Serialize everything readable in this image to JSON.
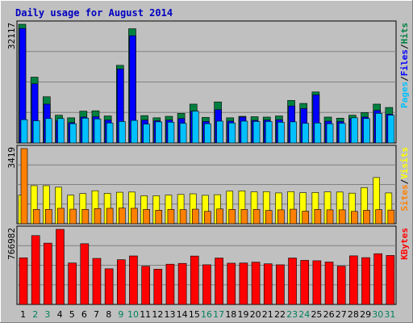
{
  "colors": {
    "background": "#c0c0c0",
    "title": "#0000c0",
    "hits": "#008040",
    "files": "#0000ff",
    "pages": "#00c0ff",
    "visits": "#ffff00",
    "sites": "#ff8000",
    "kbytes": "#ff0000",
    "weekend_day": "#00805c"
  },
  "chart_data": {
    "type": "bar",
    "title": "Daily usage for August 2014",
    "categories": [
      "1",
      "2",
      "3",
      "4",
      "5",
      "6",
      "7",
      "8",
      "9",
      "10",
      "11",
      "12",
      "13",
      "14",
      "15",
      "16",
      "17",
      "18",
      "19",
      "20",
      "21",
      "22",
      "23",
      "24",
      "25",
      "26",
      "27",
      "28",
      "29",
      "30",
      "31"
    ],
    "weekend_days": [
      "2",
      "3",
      "9",
      "10",
      "16",
      "17",
      "23",
      "24",
      "30",
      "31"
    ],
    "panels": [
      {
        "id": "hits-files-pages",
        "ymax_label": "32117",
        "ymax": 32117,
        "legend": [
          "Pages",
          "/",
          "Files",
          "/",
          "Hits"
        ],
        "series": [
          {
            "name": "Hits",
            "values": [
              32117,
              17800,
              12500,
              7500,
              6800,
              8600,
              8700,
              7300,
              21000,
              30900,
              7400,
              6800,
              7200,
              8000,
              10500,
              6900,
              11100,
              6800,
              7200,
              7100,
              7000,
              7300,
              11500,
              10700,
              13800,
              7000,
              6700,
              7500,
              8200,
              10500,
              9600
            ]
          },
          {
            "name": "Files",
            "values": [
              31000,
              16000,
              10500,
              6000,
              5500,
              7000,
              7100,
              6200,
              20000,
              29000,
              6200,
              6000,
              6200,
              6600,
              8600,
              5800,
              9000,
              5900,
              7000,
              6100,
              6200,
              6300,
              10000,
              9300,
              13000,
              5900,
              5800,
              6600,
              7000,
              8800,
              7800
            ]
          },
          {
            "name": "Pages",
            "values": [
              6300,
              6000,
              6600,
              6600,
              5200,
              6700,
              6500,
              5400,
              5800,
              6100,
              5100,
              5700,
              5600,
              5300,
              8600,
              5200,
              5900,
              5400,
              5900,
              5800,
              5800,
              5600,
              5700,
              5300,
              5400,
              5200,
              5300,
              6800,
              6600,
              8000,
              7500
            ]
          }
        ]
      },
      {
        "id": "visits-sites",
        "ymax_label": "3419",
        "ymax": 3419,
        "legend": [
          "Sites",
          "/",
          "Visits"
        ],
        "series": [
          {
            "name": "Visits",
            "values": [
              1300,
              1730,
              1730,
              1660,
              1300,
              1370,
              1500,
              1380,
              1430,
              1440,
              1270,
              1270,
              1300,
              1330,
              1360,
              1290,
              1320,
              1480,
              1490,
              1450,
              1460,
              1400,
              1460,
              1410,
              1420,
              1450,
              1440,
              1390,
              1640,
              2100,
              1400
            ]
          },
          {
            "name": "Sites",
            "values": [
              3419,
              650,
              650,
              700,
              660,
              650,
              690,
              700,
              710,
              700,
              650,
              610,
              650,
              640,
              660,
              560,
              670,
              650,
              650,
              650,
              600,
              630,
              660,
              570,
              650,
              630,
              630,
              560,
              610,
              640,
              620
            ]
          }
        ]
      },
      {
        "id": "kbytes",
        "ymax_label": "766982",
        "ymax": 766982,
        "legend": [
          "KBytes"
        ],
        "series": [
          {
            "name": "KBytes",
            "values": [
              476000,
              703000,
              626000,
              766982,
              423000,
              620000,
              470000,
              364000,
              457000,
              495000,
              390000,
              360000,
              411000,
              419000,
              494000,
              405000,
              474000,
              421000,
              423000,
              432000,
              415000,
              405000,
              474000,
              450000,
              446000,
              433000,
              391000,
              496000,
              478000,
              518000,
              500000
            ]
          }
        ]
      }
    ]
  }
}
